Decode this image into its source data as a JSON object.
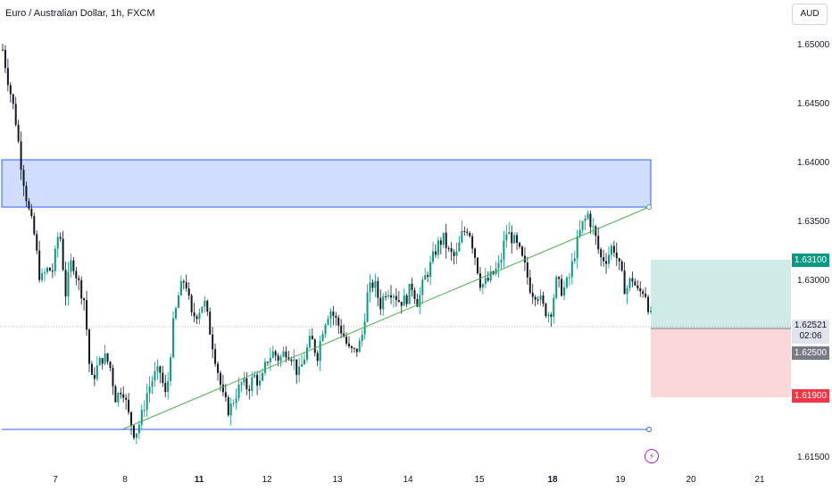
{
  "header": {
    "title": "Euro / Australian Dollar, 1h, FXCM",
    "currency": "AUD"
  },
  "price_labels": {
    "take_profit": "1.63100",
    "current_price": "1.62521",
    "countdown": "02:06",
    "entry": "1.62500",
    "stop_loss": "1.61900"
  },
  "colors": {
    "up": "#089981",
    "down": "#131722",
    "zone": "#2962ff",
    "trendline": "#4caf50",
    "tp": "#089981",
    "sl": "#f23645"
  },
  "icons": {
    "events": "lightning-icon"
  },
  "chart_data": {
    "type": "candlestick",
    "title": "Euro / Australian Dollar, 1h, FXCM",
    "y_tick_labels": [
      "1.65000",
      "1.64500",
      "1.64000",
      "1.63500",
      "1.63000",
      "1.62500",
      "1.62000",
      "1.61500"
    ],
    "y_ticks": [
      1.65,
      1.645,
      1.64,
      1.635,
      1.63,
      1.625,
      1.62,
      1.615
    ],
    "ylim": [
      1.6125,
      1.6525
    ],
    "x_tick_labels": [
      "7",
      "8",
      "11",
      "12",
      "13",
      "14",
      "15",
      "18",
      "19",
      "20",
      "21"
    ],
    "x_tick_bold": [
      "11",
      "18"
    ],
    "price_path": [
      [
        1.6495,
        1.6465
      ],
      [
        1.6438,
        1.6395
      ],
      [
        1.6362,
        1.6338
      ],
      [
        1.6298,
        1.6308
      ],
      [
        1.6308,
        1.6345
      ],
      [
        1.6288,
        1.6318
      ],
      [
        1.6298,
        1.6282
      ],
      [
        1.6212,
        1.6225
      ],
      [
        1.6235,
        1.6228
      ],
      [
        1.6198,
        1.621
      ],
      [
        1.6185,
        1.6168
      ],
      [
        1.6182,
        1.6205
      ],
      [
        1.6218,
        1.6222
      ],
      [
        1.6198,
        1.6258
      ],
      [
        1.6288,
        1.6302
      ],
      [
        1.6268,
        1.6272
      ],
      [
        1.6282,
        1.6255
      ],
      [
        1.6228,
        1.62
      ],
      [
        1.6188,
        1.6202
      ],
      [
        1.6212,
        1.6208
      ],
      [
        1.6218,
        1.621
      ],
      [
        1.6232,
        1.6238
      ],
      [
        1.6232,
        1.624
      ],
      [
        1.6235,
        1.6218
      ],
      [
        1.6235,
        1.625
      ],
      [
        1.6235,
        1.6262
      ],
      [
        1.6275,
        1.6265
      ],
      [
        1.6255,
        1.624
      ],
      [
        1.6238,
        1.6248
      ],
      [
        1.6288,
        1.6298
      ],
      [
        1.6278,
        1.6292
      ],
      [
        1.629,
        1.6282
      ],
      [
        1.6282,
        1.6295
      ],
      [
        1.628,
        1.63
      ],
      [
        1.6312,
        1.6328
      ],
      [
        1.6335,
        1.6322
      ],
      [
        1.6318,
        1.6338
      ],
      [
        1.6345,
        1.6322
      ],
      [
        1.6295,
        1.6298
      ],
      [
        1.6305,
        1.6312
      ],
      [
        1.634,
        1.6335
      ],
      [
        1.6325,
        1.631
      ],
      [
        1.629,
        1.6288
      ],
      [
        1.6275,
        1.627
      ],
      [
        1.6298,
        1.629
      ],
      [
        1.63,
        1.6325
      ],
      [
        1.6345,
        1.6355
      ],
      [
        1.634,
        1.6318
      ],
      [
        1.6318,
        1.633
      ],
      [
        1.631,
        1.629
      ],
      [
        1.6302,
        1.6288
      ],
      [
        1.6292,
        1.6268
      ]
    ],
    "annotations": {
      "resistance_zone": [
        1.6357,
        1.6398
      ],
      "support_line": 1.6165,
      "trendline": [
        [
          1.6163,
          1.6357
        ]
      ],
      "long_position": {
        "take_profit": 1.631,
        "entry": 1.625,
        "stop_loss": 1.619
      },
      "last_price": 1.62521
    }
  }
}
